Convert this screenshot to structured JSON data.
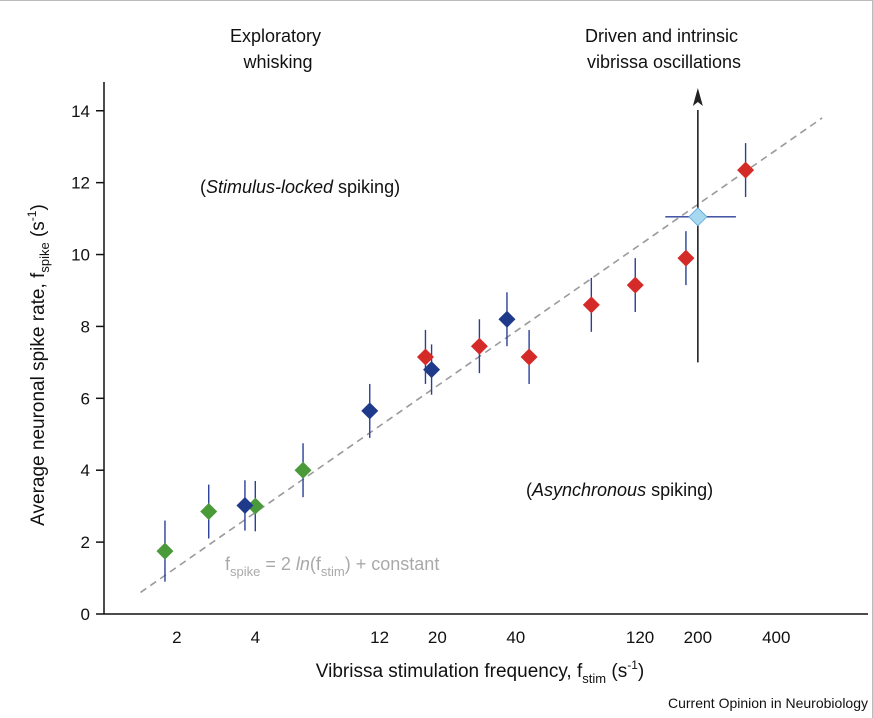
{
  "chart_data": {
    "type": "scatter",
    "xlabel": {
      "main": "Vibrissa stimulation frequency, f",
      "sub": "stim",
      "tail": " (s",
      "sup": "-1",
      "close": ")"
    },
    "ylabel": {
      "main": "Average neuronal spike rate, f",
      "sub": "spike",
      "tail": " (s",
      "sup": "-1",
      "close": ")"
    },
    "x_scale": "log",
    "x_ticks": [
      2,
      4,
      12,
      20,
      40,
      120,
      200,
      400
    ],
    "x_tick_labels": [
      "2",
      "4",
      "12",
      "20",
      "40",
      "120",
      "200",
      "400"
    ],
    "y_ticks": [
      0,
      2,
      4,
      6,
      8,
      10,
      12,
      14
    ],
    "y_tick_labels": [
      "0",
      "2",
      "4",
      "6",
      "8",
      "10",
      "12",
      "14"
    ],
    "ylim": [
      0,
      14.8
    ],
    "xlim": [
      1.05,
      900
    ],
    "grid": false,
    "region_labels": [
      {
        "lines": [
          "Exploratory",
          "whisking"
        ]
      },
      {
        "lines": [
          "Driven and intrinsic",
          "vibrissa oscillations"
        ]
      }
    ],
    "annotations": {
      "stimulus_locked": {
        "open": "(",
        "italic": "Stimulus-locked",
        "rest": " spiking)"
      },
      "asynchronous": {
        "open": "(",
        "italic": "Asynchronous",
        "rest": " spiking)"
      }
    },
    "fit_line": {
      "x_range": [
        1.45,
        600
      ],
      "y_range": [
        0.6,
        13.8
      ],
      "label": {
        "f": "f",
        "sub1": "spike",
        "eq": " = 2 ",
        "ln": "ln",
        "open": "(f",
        "sub2": "stim",
        "rest": ") + constant"
      }
    },
    "series": [
      {
        "color": "#4a9a3a",
        "points": [
          {
            "x": 1.8,
            "y": 1.75,
            "err": 0.85
          },
          {
            "x": 2.65,
            "y": 2.85,
            "err": 0.75
          },
          {
            "x": 4.0,
            "y": 3.0,
            "err": 0.7
          },
          {
            "x": 6.1,
            "y": 4.0,
            "err": 0.75
          }
        ]
      },
      {
        "color": "#1f3a8a",
        "points": [
          {
            "x": 3.65,
            "y": 3.02,
            "err": 0.7
          },
          {
            "x": 11.0,
            "y": 5.65,
            "err": 0.75
          },
          {
            "x": 19.0,
            "y": 6.8,
            "err": 0.7
          },
          {
            "x": 37.0,
            "y": 8.2,
            "err": 0.75
          }
        ]
      },
      {
        "color": "#d42a28",
        "points": [
          {
            "x": 18.0,
            "y": 7.15,
            "err": 0.75
          },
          {
            "x": 29.0,
            "y": 7.45,
            "err": 0.75
          },
          {
            "x": 45.0,
            "y": 7.15,
            "err": 0.75
          },
          {
            "x": 78.0,
            "y": 8.6,
            "err": 0.75
          },
          {
            "x": 115.0,
            "y": 9.15,
            "err": 0.75
          },
          {
            "x": 180.0,
            "y": 9.9,
            "err": 0.75
          },
          {
            "x": 305.0,
            "y": 12.35,
            "err": 0.75
          }
        ]
      }
    ],
    "highlight_point": {
      "x": 200,
      "y": 11.05,
      "x_low": 150,
      "x_high": 280,
      "y_low": 7.0,
      "y_high": 14.3,
      "color": "#a8d8f0",
      "edge": "#5aa9d8"
    }
  },
  "credit": "Current Opinion in Neurobiology"
}
